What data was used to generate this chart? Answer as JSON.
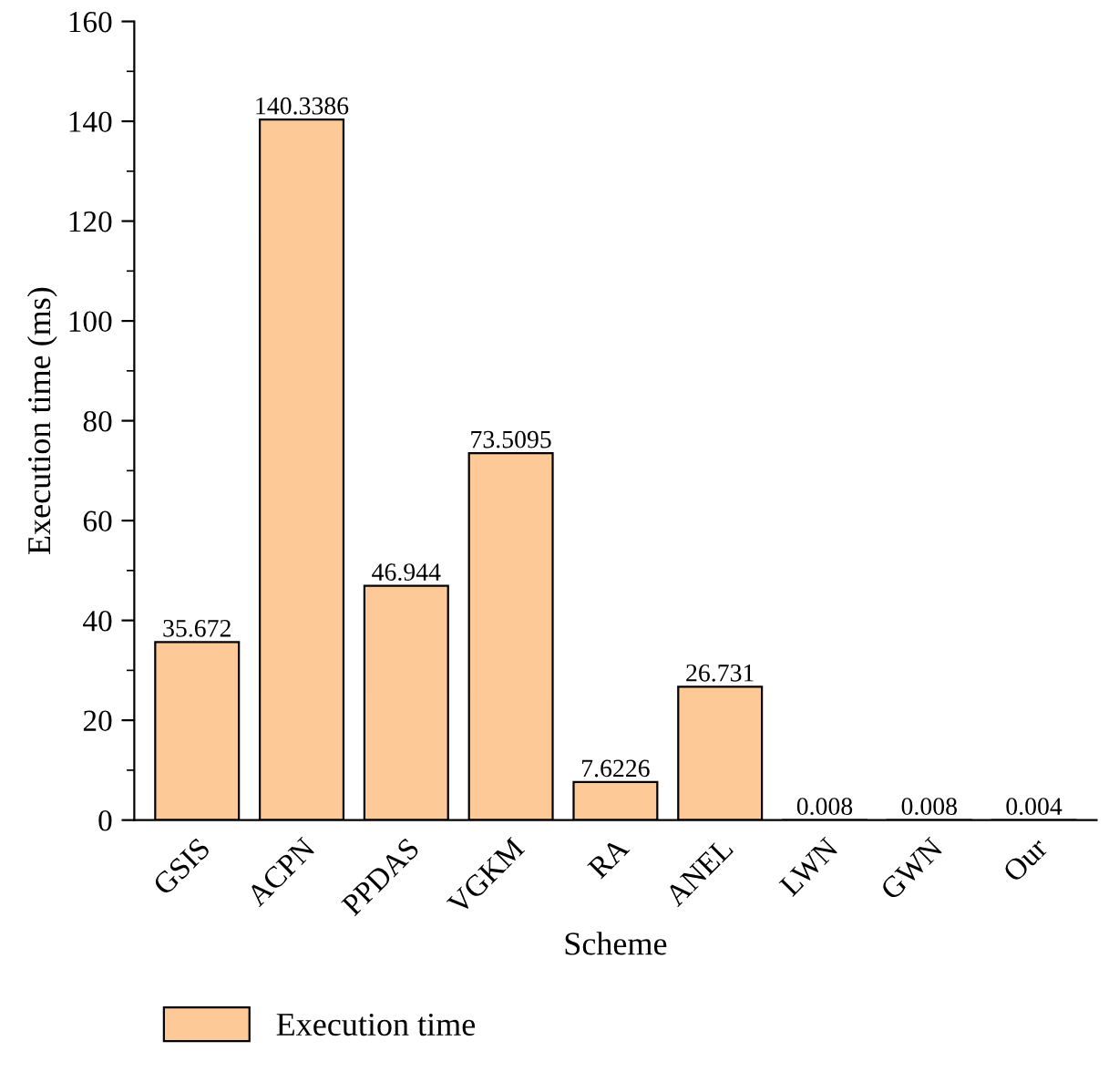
{
  "chart_data": {
    "type": "bar",
    "xlabel": "Scheme",
    "ylabel": "Execution time (ms)",
    "categories": [
      "GSIS",
      "ACPN",
      "PPDAS",
      "VGKM",
      "RA",
      "ANEL",
      "LWN",
      "GWN",
      "Our"
    ],
    "series": [
      {
        "name": "Execution time",
        "color": "#fdc997",
        "values": [
          35.672,
          140.3386,
          46.944,
          73.5095,
          7.6226,
          26.731,
          0.008,
          0.008,
          0.004
        ]
      }
    ],
    "ylim": [
      0,
      160
    ],
    "yticks": [
      0,
      20,
      40,
      60,
      80,
      100,
      120,
      140,
      160
    ],
    "data_labels": true,
    "legend": "bottom left",
    "grid": false
  }
}
